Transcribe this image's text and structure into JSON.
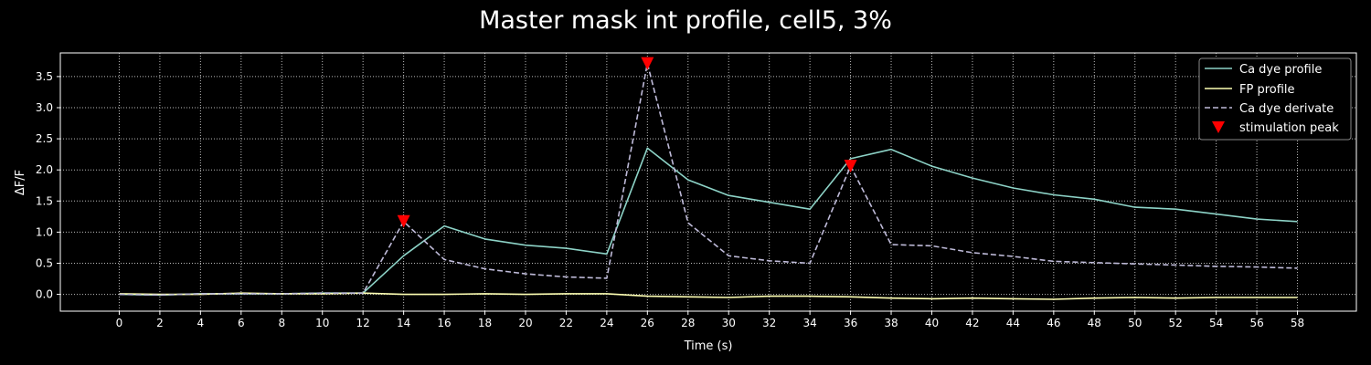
{
  "chart_data": {
    "type": "line",
    "title": "Master mask int profile, cell5, 3%",
    "xlabel": "Time (s)",
    "ylabel": "ΔF/F",
    "xlim": [
      -2.9,
      60.9
    ],
    "ylim": [
      -0.27,
      3.88
    ],
    "xticks": [
      0,
      2,
      4,
      6,
      8,
      10,
      12,
      14,
      16,
      18,
      20,
      22,
      24,
      26,
      28,
      30,
      32,
      34,
      36,
      38,
      40,
      42,
      44,
      46,
      48,
      50,
      52,
      54,
      56,
      58
    ],
    "yticks": [
      0.0,
      0.5,
      1.0,
      1.5,
      2.0,
      2.5,
      3.0,
      3.5
    ],
    "ytick_labels": [
      "0.0",
      "0.5",
      "1.0",
      "1.5",
      "2.0",
      "2.5",
      "3.0",
      "3.5"
    ],
    "grid": true,
    "legend_position": "top-right",
    "colors": {
      "background": "#000000",
      "ca_profile": "#8dd3c7",
      "fp_profile": "#feffb3",
      "ca_derivate": "#bfbbd9",
      "peak": "#ff0000"
    },
    "x": [
      0,
      2,
      4,
      6,
      8,
      10,
      12,
      14,
      16,
      18,
      20,
      22,
      24,
      26,
      28,
      30,
      32,
      34,
      36,
      38,
      40,
      42,
      44,
      46,
      48,
      50,
      52,
      54,
      56,
      58
    ],
    "series": [
      {
        "name": "Ca dye profile",
        "style": "solid",
        "values": [
          0.0,
          -0.01,
          0.01,
          0.01,
          0.01,
          0.02,
          0.02,
          0.62,
          1.1,
          0.89,
          0.79,
          0.74,
          0.65,
          2.35,
          1.84,
          1.59,
          1.48,
          1.37,
          2.18,
          2.33,
          2.06,
          1.87,
          1.71,
          1.6,
          1.53,
          1.4,
          1.37,
          1.29,
          1.21,
          1.17
        ]
      },
      {
        "name": "FP profile",
        "style": "solid",
        "values": [
          0.01,
          0.0,
          0.0,
          0.02,
          0.01,
          0.01,
          0.02,
          0.0,
          0.0,
          0.01,
          0.0,
          0.01,
          0.01,
          -0.03,
          -0.04,
          -0.05,
          -0.03,
          -0.03,
          -0.04,
          -0.06,
          -0.07,
          -0.06,
          -0.07,
          -0.08,
          -0.06,
          -0.05,
          -0.06,
          -0.05,
          -0.05,
          -0.05
        ]
      },
      {
        "name": "Ca dye derivate",
        "style": "dashed",
        "values": [
          0.0,
          -0.01,
          0.01,
          0.01,
          0.01,
          0.02,
          0.02,
          1.17,
          0.56,
          0.41,
          0.33,
          0.28,
          0.26,
          3.71,
          1.15,
          0.62,
          0.54,
          0.5,
          2.06,
          0.8,
          0.78,
          0.67,
          0.61,
          0.53,
          0.51,
          0.49,
          0.47,
          0.45,
          0.44,
          0.42
        ]
      }
    ],
    "peaks": {
      "name": "stimulation peak",
      "x": [
        14,
        26,
        36
      ],
      "y": [
        1.17,
        3.71,
        2.06
      ]
    }
  }
}
